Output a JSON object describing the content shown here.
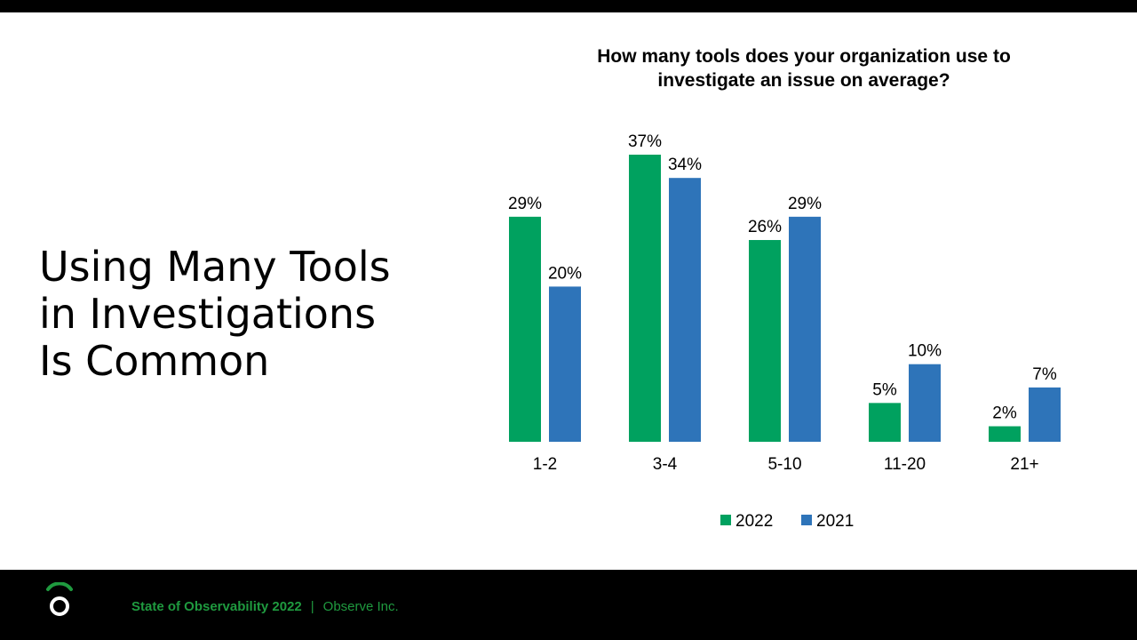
{
  "slide": {
    "title_lines": [
      "Using Many Tools",
      "in Investigations",
      "Is Common"
    ]
  },
  "footer": {
    "report": "State of Observability  2022",
    "separator": "|",
    "company": "Observe Inc.",
    "logo_icon": "observe-logo-icon"
  },
  "colors": {
    "series_2022": "#00a15f",
    "series_2021": "#2e74b9",
    "footer_green": "#1f9a3f"
  },
  "chart_data": {
    "type": "bar",
    "title_lines": [
      "How many tools does your organization use to",
      "investigate an issue on average?"
    ],
    "categories": [
      "1-2",
      "3-4",
      "5-10",
      "11-20",
      "21+"
    ],
    "series": [
      {
        "name": "2022",
        "values": [
          29,
          37,
          26,
          5,
          2
        ],
        "labels": [
          "29%",
          "37%",
          "26%",
          "5%",
          "2%"
        ]
      },
      {
        "name": "2021",
        "values": [
          20,
          34,
          29,
          10,
          7
        ],
        "labels": [
          "20%",
          "34%",
          "29%",
          "10%",
          "7%"
        ]
      }
    ],
    "ylim": [
      0,
      37
    ],
    "unit": "%",
    "grid": false,
    "legend": "bottom-center"
  }
}
